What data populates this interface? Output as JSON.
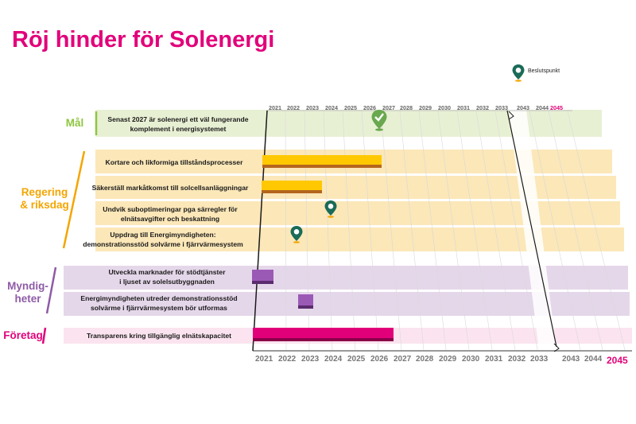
{
  "title": "Röj hinder för Solenergi",
  "legend": {
    "icon": "decision-point-pin-icon",
    "label": "Beslutspunkt"
  },
  "years_top": [
    "2021",
    "2022",
    "2023",
    "2024",
    "2025",
    "2026",
    "2027",
    "2028",
    "2029",
    "2030",
    "2031",
    "2032",
    "2033",
    "2043",
    "2044",
    "2045"
  ],
  "years_bottom": [
    "2021",
    "2022",
    "2023",
    "2024",
    "2025",
    "2026",
    "2027",
    "2028",
    "2029",
    "2030",
    "2031",
    "2032",
    "2033",
    "2043",
    "2044",
    "2045"
  ],
  "categories": [
    {
      "name": "Mål",
      "color": "#8dc63f"
    },
    {
      "name": "Regering\n& riksdag",
      "color": "#f4a500"
    },
    {
      "name": "Myndig-\nheter",
      "color": "#8e5ba6"
    },
    {
      "name": "Företag",
      "color": "#e2007a"
    }
  ],
  "rows": [
    {
      "label": "Senast 2027 är solenergi ett väl fungerande\nkomplement i energisystemet",
      "category": "Mål",
      "milestone": {
        "type": "achieved-goal",
        "year": 2026.4,
        "icon": "check-pin-icon"
      }
    },
    {
      "label": "Kortare och likformiga tillståndsprocesser",
      "category": "Regering & riksdag",
      "bar": {
        "start": 2021,
        "end": 2026.4,
        "color": "#ffc800"
      }
    },
    {
      "label": "Säkerställ markåtkomst till solcellsanläggningar",
      "category": "Regering & riksdag",
      "bar": {
        "start": 2021,
        "end": 2023.8,
        "color": "#ffc800"
      }
    },
    {
      "label": "Undvik suboptimeringar pga särregler för\nelnätsavgifter och beskattning",
      "category": "Regering & riksdag",
      "milestone": {
        "year": 2023.8,
        "icon": "decision-point-pin-icon"
      }
    },
    {
      "label": "Uppdrag till Energimyndigheten:\ndemonstrationsstöd solvärme  i fjärrvärmesystem",
      "category": "Regering & riksdag",
      "milestone": {
        "year": 2022.1,
        "icon": "decision-point-pin-icon"
      }
    },
    {
      "label": "Utveckla marknader för stödtjänster\ni ljuset av solelsutbyggnaden",
      "category": "Myndigheter",
      "bar": {
        "start": 2020.9,
        "end": 2021.5,
        "color": "#9b59b6"
      }
    },
    {
      "label": "Energimyndigheten utreder demonstrationsstöd\nsolvärme i fjärrvärmesystem bör utformas",
      "category": "Myndigheter",
      "bar": {
        "start": 2022.1,
        "end": 2022.7,
        "color": "#9b59b6"
      }
    },
    {
      "label": "Transparens kring tillgänglig elnätskapacitet",
      "category": "Företag",
      "bar": {
        "start": 2020.9,
        "end": 2026.4,
        "color": "#e2007a"
      }
    }
  ]
}
